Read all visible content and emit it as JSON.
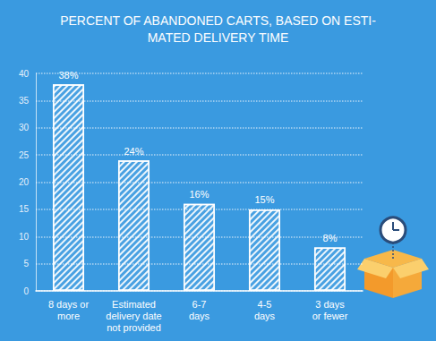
{
  "chart_data": {
    "type": "bar",
    "title": "PERCENT OF ABANDONED CARTS, BASED ON ESTI-\nMATED DELIVERY TIME",
    "categories": [
      "8 days or\nmore",
      "Estimated\ndelivery date\nnot provided",
      "6-7\ndays",
      "4-5\ndays",
      "3 days\nor fewer"
    ],
    "values": [
      38,
      24,
      16,
      15,
      8
    ],
    "value_labels": [
      "38%",
      "24%",
      "16%",
      "15%",
      "8%"
    ],
    "data_labels": true,
    "color": "#ffffff",
    "ylim": [
      0,
      40
    ],
    "yticks": [
      0,
      5,
      10,
      15,
      20,
      25,
      30,
      35,
      40
    ],
    "grid": true
  }
}
